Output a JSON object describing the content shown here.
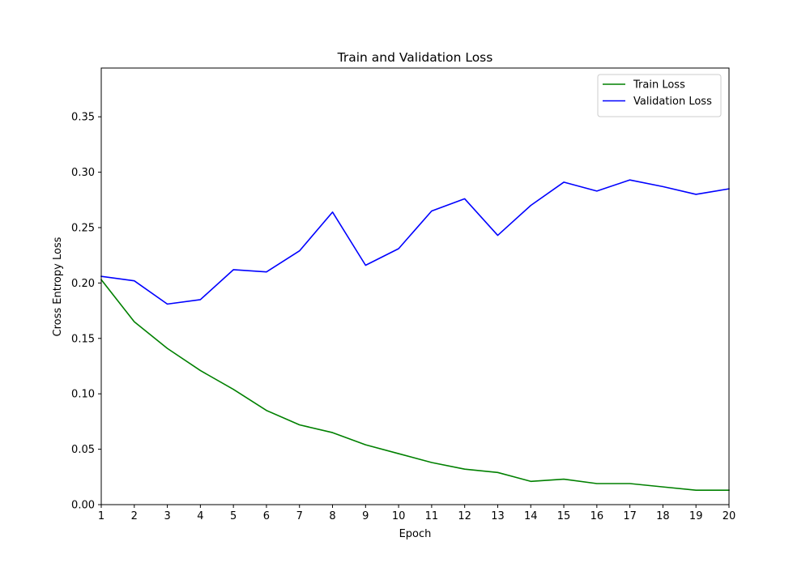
{
  "chart_data": {
    "type": "line",
    "title": "Train and Validation Loss",
    "xlabel": "Epoch",
    "ylabel": "Cross Entropy Loss",
    "xlim": [
      1,
      20
    ],
    "ylim": [
      0.0,
      0.394
    ],
    "x_ticks": [
      1,
      2,
      3,
      4,
      5,
      6,
      7,
      8,
      9,
      10,
      11,
      12,
      13,
      14,
      15,
      16,
      17,
      18,
      19,
      20
    ],
    "y_ticks": [
      0.0,
      0.05,
      0.1,
      0.15,
      0.2,
      0.25,
      0.3,
      0.35
    ],
    "y_tick_labels": [
      "0.00",
      "0.05",
      "0.10",
      "0.15",
      "0.20",
      "0.25",
      "0.30",
      "0.35"
    ],
    "grid": false,
    "legend_position": "upper right",
    "x": [
      1,
      2,
      3,
      4,
      5,
      6,
      7,
      8,
      9,
      10,
      11,
      12,
      13,
      14,
      15,
      16,
      17,
      18,
      19,
      20
    ],
    "series": [
      {
        "name": "Train Loss",
        "color": "#008000",
        "values": [
          0.203,
          0.165,
          0.141,
          0.121,
          0.104,
          0.085,
          0.072,
          0.065,
          0.054,
          0.046,
          0.038,
          0.032,
          0.029,
          0.021,
          0.023,
          0.019,
          0.019,
          0.016,
          0.013,
          0.013
        ]
      },
      {
        "name": "Validation Loss",
        "color": "#0000ff",
        "values": [
          0.206,
          0.202,
          0.181,
          0.185,
          0.212,
          0.21,
          0.229,
          0.264,
          0.216,
          0.231,
          0.265,
          0.276,
          0.243,
          0.27,
          0.291,
          0.283,
          0.293,
          0.287,
          0.28,
          0.285
        ]
      }
    ]
  }
}
